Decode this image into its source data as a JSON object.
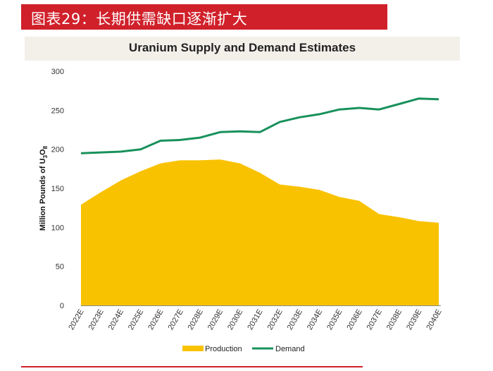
{
  "banner": {
    "text": "图表29：长期供需缺口逐渐扩大"
  },
  "chart_data": {
    "type": "area",
    "title": "Uranium Supply and Demand Estimates",
    "ylabel_main": "Million Pounds of U",
    "ylabel_sub1": "3",
    "ylabel_mid": "O",
    "ylabel_sub2": "8",
    "ylim": [
      0,
      300
    ],
    "yticks": [
      "0",
      "50",
      "100",
      "150",
      "200",
      "250",
      "300"
    ],
    "categories": [
      "2022E",
      "2023E",
      "2024E",
      "2025E",
      "2026E",
      "2027E",
      "2028E",
      "2029E",
      "2030E",
      "2031E",
      "2032E",
      "2033E",
      "2034E",
      "2035E",
      "2036E",
      "2037E",
      "2038E",
      "2039E",
      "2040E"
    ],
    "series": [
      {
        "name": "Production",
        "kind": "area",
        "color": "#f9c200",
        "values": [
          129,
          145,
          160,
          172,
          182,
          186,
          186,
          187,
          182,
          170,
          155,
          152,
          148,
          139,
          134,
          117,
          113,
          108,
          106
        ]
      },
      {
        "name": "Demand",
        "kind": "line",
        "color": "#18915c",
        "values": [
          195,
          196,
          197,
          200,
          211,
          212,
          215,
          222,
          223,
          222,
          235,
          241,
          245,
          251,
          253,
          251,
          258,
          265,
          264
        ]
      }
    ],
    "legend_position": "bottom-center",
    "grid": false
  }
}
